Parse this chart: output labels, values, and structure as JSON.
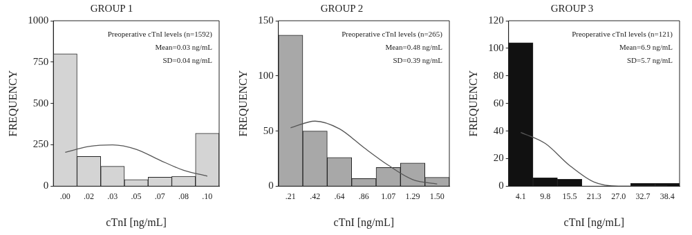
{
  "chart_data": [
    {
      "type": "bar",
      "title": "GROUP 1",
      "xlabel": "cTnI [ng/mL]",
      "ylabel": "FREQUENCY",
      "categories": [
        ".00",
        ".02",
        ".03",
        ".05",
        ".07",
        ".08",
        ".10"
      ],
      "series": [
        {
          "color": "#d4d4d4",
          "values": [
            800,
            180,
            120,
            40,
            55,
            60,
            320
          ]
        },
        {
          "type": "line",
          "color": "#555555",
          "values": [
            205,
            240,
            250,
            223,
            157,
            96,
            61
          ]
        }
      ],
      "ylim": [
        0,
        1000
      ],
      "yticks": [
        0,
        250,
        500,
        750,
        1000
      ],
      "grid": false,
      "legend": false,
      "marker": "none",
      "line_style": "solid",
      "annotations": [
        "Preoperative cTnI levels (n=1592)",
        "Mean=0.03 ng/mL",
        "SD=0.04 ng/mL"
      ]
    },
    {
      "type": "bar",
      "title": "GROUP 2",
      "xlabel": "cTnI [ng/mL]",
      "ylabel": "FREQUENCY",
      "categories": [
        ".21",
        ".42",
        ".64",
        ".86",
        "1.07",
        "1.29",
        "1.50"
      ],
      "series": [
        {
          "color": "#a8a8a8",
          "values": [
            137,
            50,
            26,
            7,
            17,
            21,
            8
          ]
        },
        {
          "type": "line",
          "color": "#555555",
          "values": [
            53,
            59,
            52,
            35,
            19,
            6,
            2
          ]
        }
      ],
      "ylim": [
        0,
        150
      ],
      "yticks": [
        0,
        50,
        100,
        150
      ],
      "grid": false,
      "legend": false,
      "marker": "none",
      "line_style": "solid",
      "annotations": [
        "Preoperative cTnI levels (n=265)",
        "Mean=0.48 ng/mL",
        "SD=0.39 ng/mL"
      ]
    },
    {
      "type": "bar",
      "title": "GROUP 3",
      "xlabel": "cTnI [ng/mL]",
      "ylabel": "FREQUENCY",
      "categories": [
        "4.1",
        "9.8",
        "15.5",
        "21.3",
        "27.0",
        "32.7",
        "38.4"
      ],
      "series": [
        {
          "color": "#111111",
          "values": [
            104,
            6,
            5,
            0,
            0,
            2,
            2
          ]
        },
        {
          "type": "line",
          "color": "#555555",
          "values": [
            39,
            31,
            15,
            3,
            0,
            0,
            0
          ]
        }
      ],
      "ylim": [
        0,
        120
      ],
      "yticks": [
        0,
        20,
        40,
        60,
        80,
        100,
        120
      ],
      "grid": false,
      "legend": false,
      "marker": "none",
      "line_style": "solid",
      "annotations": [
        "Preoperative cTnI levels (n=121)",
        "Mean=6.9 ng/mL",
        "SD=5.7 ng/mL"
      ]
    }
  ]
}
